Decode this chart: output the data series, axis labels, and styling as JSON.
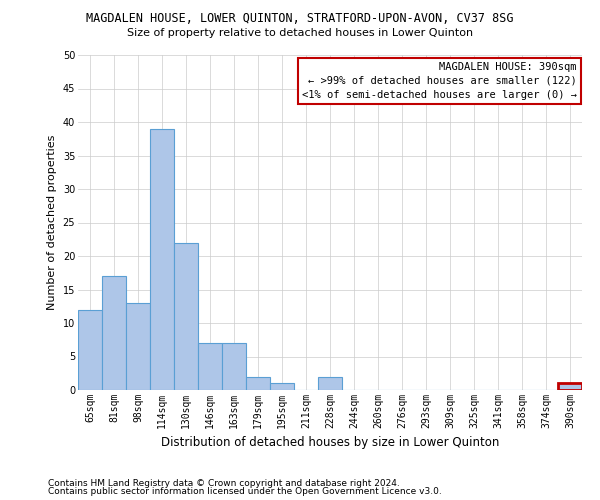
{
  "title1": "MAGDALEN HOUSE, LOWER QUINTON, STRATFORD-UPON-AVON, CV37 8SG",
  "title2": "Size of property relative to detached houses in Lower Quinton",
  "xlabel": "Distribution of detached houses by size in Lower Quinton",
  "ylabel": "Number of detached properties",
  "categories": [
    "65sqm",
    "81sqm",
    "98sqm",
    "114sqm",
    "130sqm",
    "146sqm",
    "163sqm",
    "179sqm",
    "195sqm",
    "211sqm",
    "228sqm",
    "244sqm",
    "260sqm",
    "276sqm",
    "293sqm",
    "309sqm",
    "325sqm",
    "341sqm",
    "358sqm",
    "374sqm",
    "390sqm"
  ],
  "values": [
    12,
    17,
    13,
    39,
    22,
    7,
    7,
    2,
    1,
    0,
    2,
    0,
    0,
    0,
    0,
    0,
    0,
    0,
    0,
    0,
    1
  ],
  "bar_color": "#aec6e8",
  "bar_edge_color": "#5a9fd4",
  "highlight_bar_index": 20,
  "highlight_bar_edge_color": "#c00000",
  "annotation_box_color": "#c00000",
  "annotation_lines": [
    "MAGDALEN HOUSE: 390sqm",
    "← >99% of detached houses are smaller (122)",
    "<1% of semi-detached houses are larger (0) →"
  ],
  "ylim": [
    0,
    50
  ],
  "yticks": [
    0,
    5,
    10,
    15,
    20,
    25,
    30,
    35,
    40,
    45,
    50
  ],
  "footer_line1": "Contains HM Land Registry data © Crown copyright and database right 2024.",
  "footer_line2": "Contains public sector information licensed under the Open Government Licence v3.0.",
  "bg_color": "#ffffff",
  "grid_color": "#cccccc",
  "title1_fontsize": 8.5,
  "title2_fontsize": 8.0,
  "ylabel_fontsize": 8.0,
  "xlabel_fontsize": 8.5,
  "tick_fontsize": 7.0,
  "ann_fontsize": 7.5,
  "footer_fontsize": 6.5
}
